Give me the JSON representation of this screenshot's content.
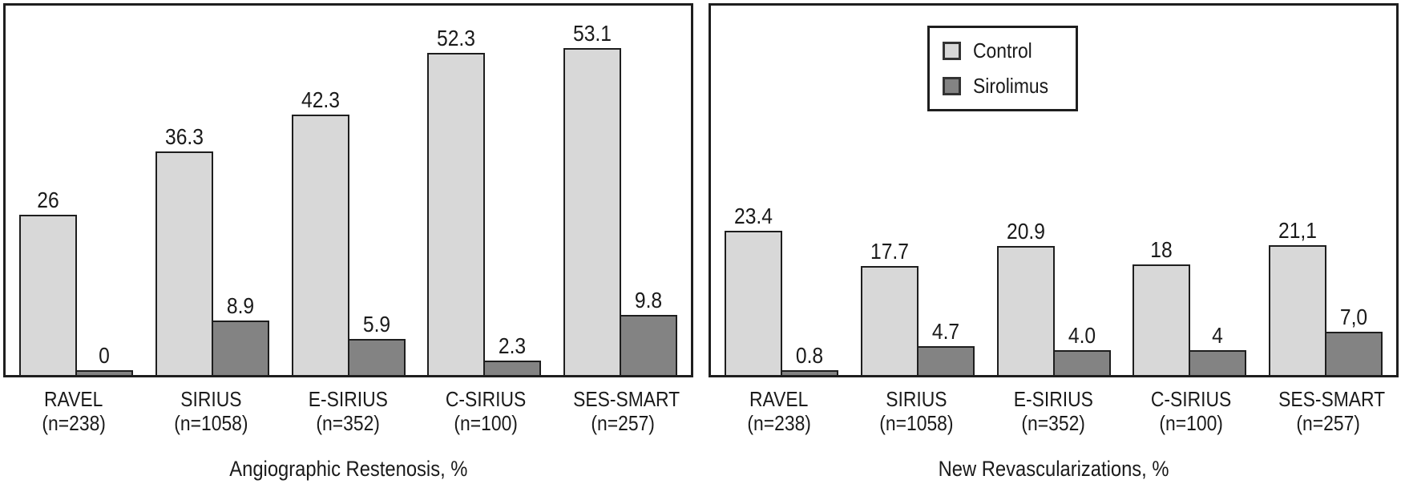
{
  "figure": {
    "type": "two-panel grouped bar chart",
    "background": "#ffffff",
    "text_color": "#1a1a1a",
    "border_color": "#1e1e1e"
  },
  "legend": {
    "position": "inside top of right panel",
    "items": [
      {
        "label": "Control",
        "color": "#d8d8d8"
      },
      {
        "label": "Sirolimus",
        "color": "#838383"
      }
    ]
  },
  "chart_data": [
    {
      "type": "bar",
      "panel": "left",
      "title": "Angiographic Restenosis, %",
      "categories": [
        "RAVEL",
        "SIRIUS",
        "E-SIRIUS",
        "C-SIRIUS",
        "SES-SMART"
      ],
      "category_sublabels": [
        "(n=238)",
        "(n=1058)",
        "(n=352)",
        "(n=100)",
        "(n=257)"
      ],
      "series": [
        {
          "name": "Control",
          "color": "#d8d8d8",
          "values": [
            26,
            36.3,
            42.3,
            52.3,
            53.1
          ],
          "value_labels": [
            "26",
            "36.3",
            "42.3",
            "52.3",
            "53.1"
          ]
        },
        {
          "name": "Sirolimus",
          "color": "#838383",
          "values": [
            0,
            8.9,
            5.9,
            2.3,
            9.8
          ],
          "value_labels": [
            "0",
            "8.9",
            "5.9",
            "2.3",
            "9.8"
          ]
        }
      ],
      "ylim": [
        0,
        60
      ],
      "grid": false,
      "y_axis_visible": false,
      "legend_position": "none"
    },
    {
      "type": "bar",
      "panel": "right",
      "title": "New Revascularizations, %",
      "categories": [
        "RAVEL",
        "SIRIUS",
        "E-SIRIUS",
        "C-SIRIUS",
        "SES-SMART"
      ],
      "category_sublabels": [
        "(n=238)",
        "(n=1058)",
        "(n=352)",
        "(n=100)",
        "(n=257)"
      ],
      "series": [
        {
          "name": "Control",
          "color": "#d8d8d8",
          "values": [
            23.4,
            17.7,
            20.9,
            18,
            21.1
          ],
          "value_labels": [
            "23.4",
            "17.7",
            "20.9",
            "18",
            "21,1"
          ]
        },
        {
          "name": "Sirolimus",
          "color": "#838383",
          "values": [
            0.8,
            4.7,
            4.0,
            4,
            7.0
          ],
          "value_labels": [
            "0.8",
            "4.7",
            "4.0",
            "4",
            "7,0"
          ]
        }
      ],
      "ylim": [
        0,
        60
      ],
      "grid": false,
      "y_axis_visible": false,
      "legend_position": "inside-top"
    }
  ]
}
